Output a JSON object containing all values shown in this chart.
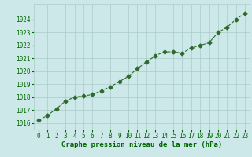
{
  "x": [
    0,
    1,
    2,
    3,
    4,
    5,
    6,
    7,
    8,
    9,
    10,
    11,
    12,
    13,
    14,
    15,
    16,
    17,
    18,
    19,
    20,
    21,
    22,
    23
  ],
  "y": [
    1016.2,
    1016.6,
    1017.1,
    1017.7,
    1018.0,
    1018.1,
    1018.2,
    1018.5,
    1018.8,
    1019.2,
    1019.6,
    1020.2,
    1020.7,
    1021.2,
    1021.5,
    1021.5,
    1021.4,
    1021.8,
    1022.0,
    1022.2,
    1023.0,
    1023.4,
    1024.0,
    1024.5
  ],
  "line_color": "#2d6a2d",
  "marker": "D",
  "marker_size": 2.5,
  "bg_color": "#cce8e8",
  "grid_color": "#aacccc",
  "xlabel": "Graphe pression niveau de la mer (hPa)",
  "xlabel_color": "#006600",
  "xlabel_fontsize": 6.5,
  "tick_color": "#006600",
  "tick_fontsize": 5.5,
  "ylim": [
    1015.5,
    1025.2
  ],
  "xlim": [
    -0.5,
    23.5
  ],
  "yticks": [
    1016,
    1017,
    1018,
    1019,
    1020,
    1021,
    1022,
    1023,
    1024
  ],
  "xticks": [
    0,
    1,
    2,
    3,
    4,
    5,
    6,
    7,
    8,
    9,
    10,
    11,
    12,
    13,
    14,
    15,
    16,
    17,
    18,
    19,
    20,
    21,
    22,
    23
  ]
}
